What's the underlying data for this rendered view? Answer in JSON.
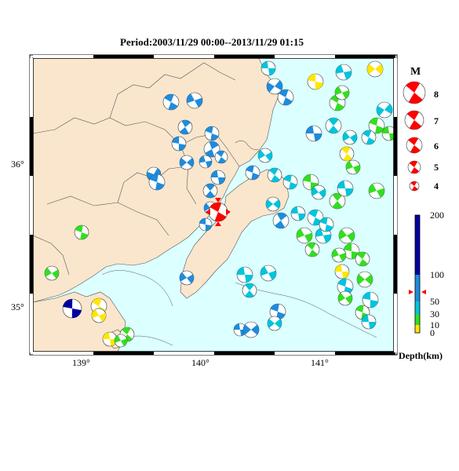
{
  "title": "Period:2003/11/29 00:00--2013/11/29 01:15",
  "lon_labels": [
    "139°",
    "140°",
    "141°"
  ],
  "lat_labels": [
    "36°",
    "35°"
  ],
  "magnitude_legend": {
    "header": "M",
    "items": [
      "8",
      "7",
      "6",
      "5",
      "4"
    ]
  },
  "depth_legend": {
    "unit": "Depth(km)",
    "ticks": [
      "200",
      "100",
      "50",
      "30",
      "10",
      "0"
    ]
  },
  "colors": {
    "land": "#fae6cd",
    "sea": "#dcffff",
    "shallow": "#ffe600",
    "mid": "#33dd22",
    "medium": "#00c4dc",
    "deep": "#1e8cdc",
    "verydeep": "#0000a0",
    "highlight": "#ff0000"
  }
}
